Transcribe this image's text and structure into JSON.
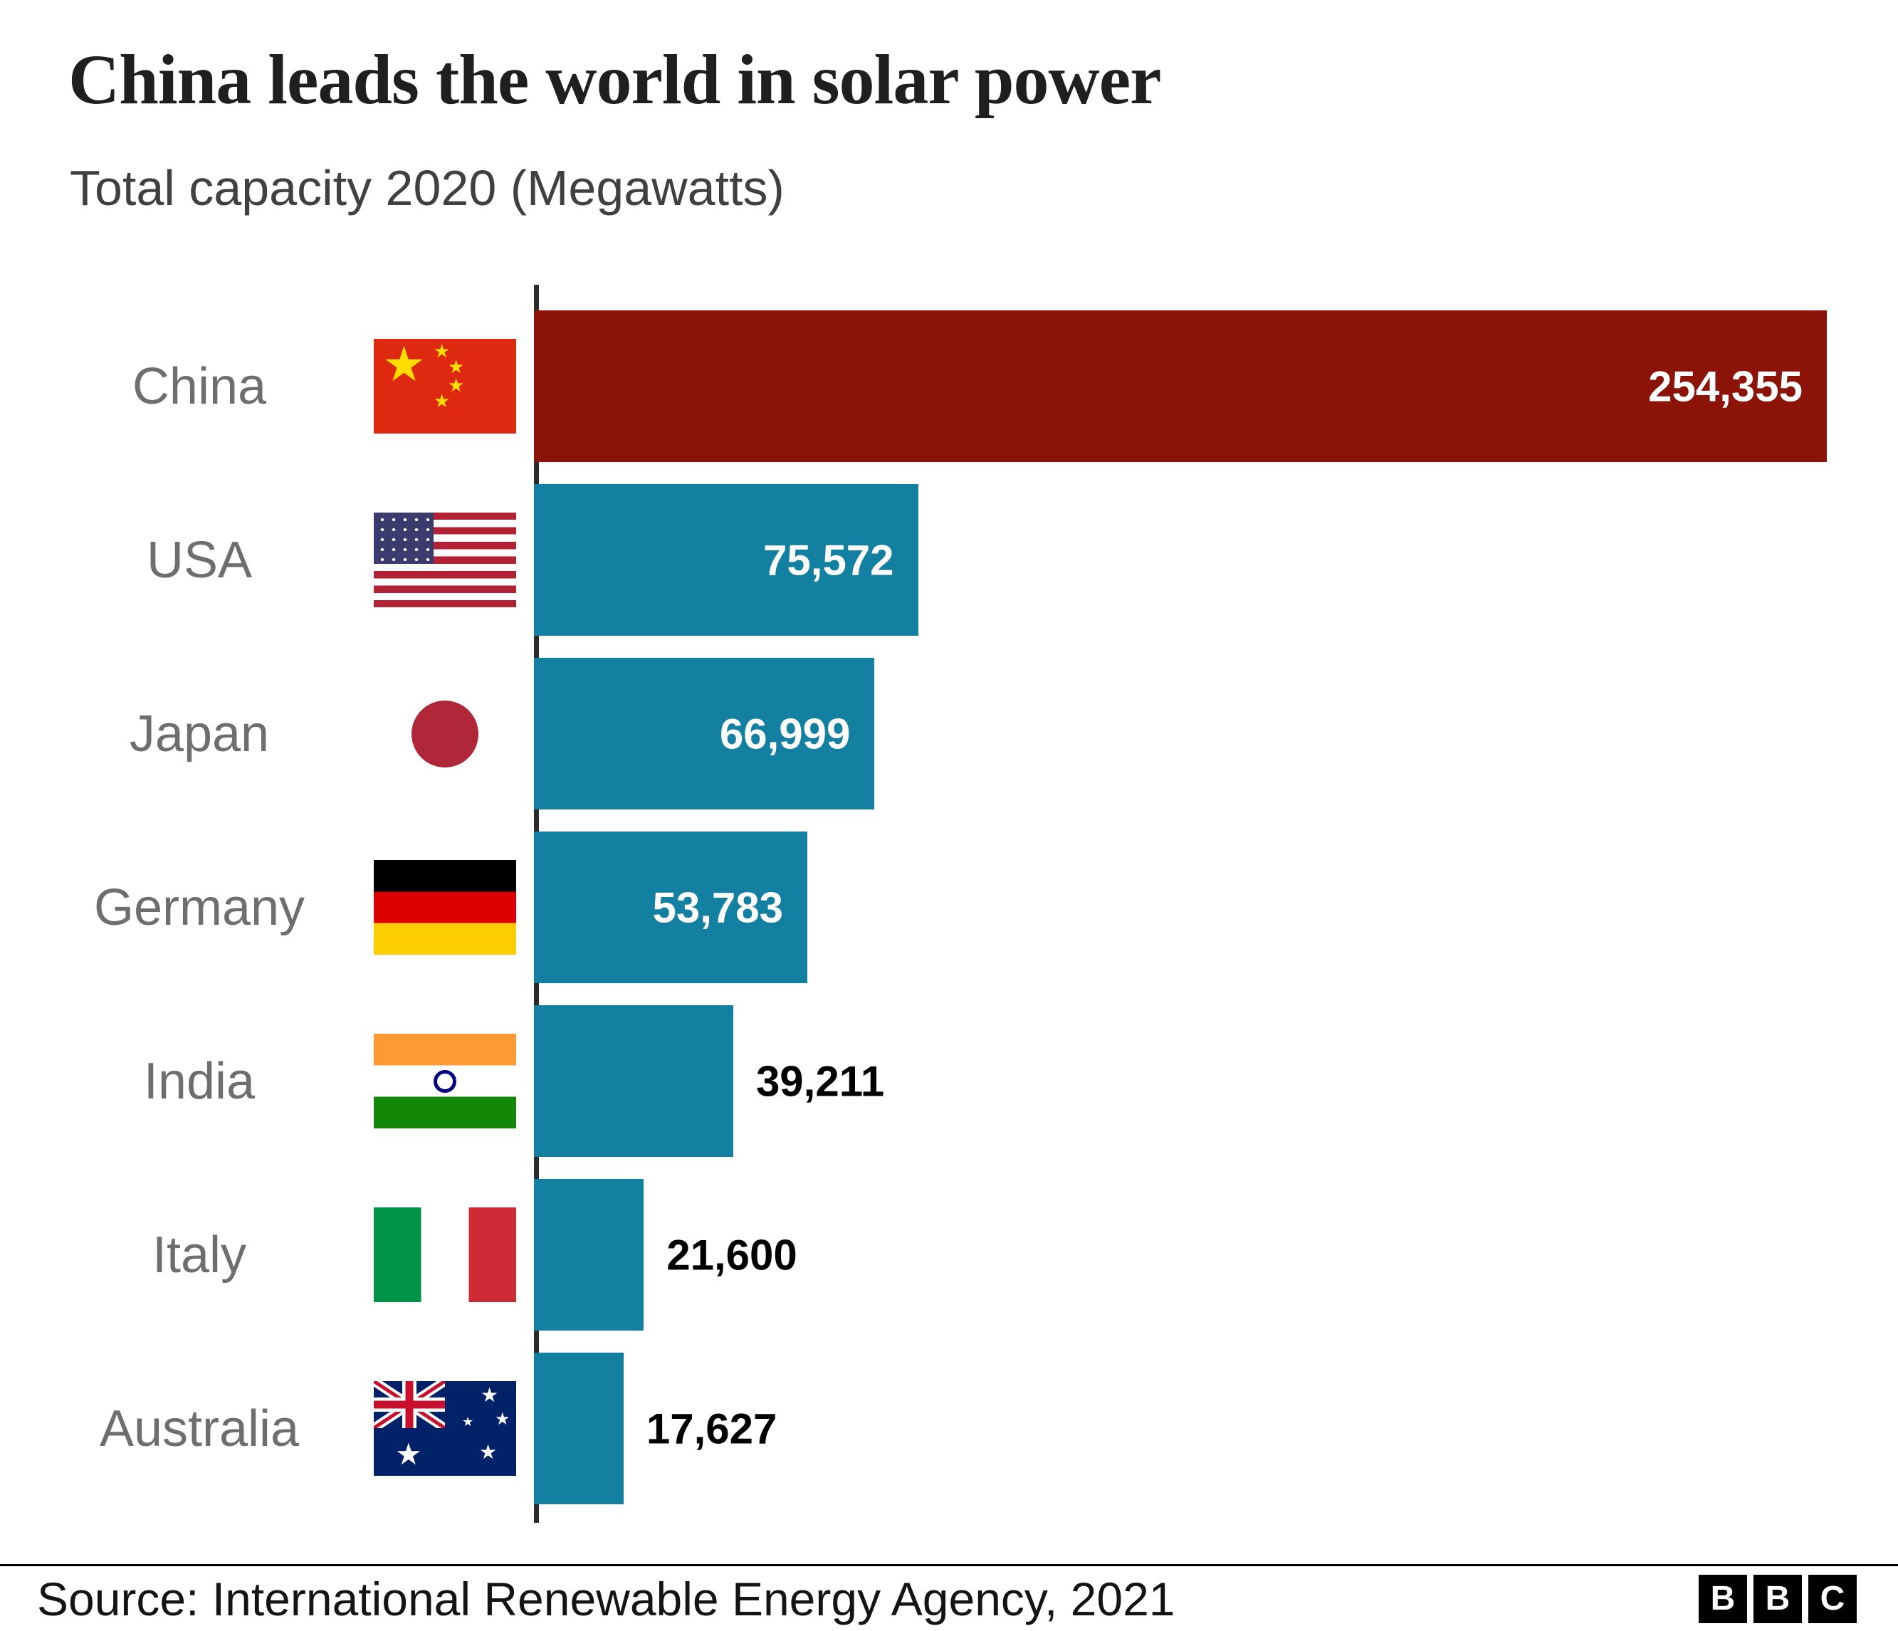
{
  "chart_data": {
    "type": "bar",
    "orientation": "horizontal",
    "title": "China leads the world in solar power",
    "subtitle": "Total capacity 2020 (Megawatts)",
    "categories": [
      "China",
      "USA",
      "Japan",
      "Germany",
      "India",
      "Italy",
      "Australia"
    ],
    "values": [
      254355,
      75572,
      66999,
      53783,
      39211,
      21600,
      17627
    ],
    "value_labels": [
      "254,355",
      "75,572",
      "66,999",
      "53,783",
      "39,211",
      "21,600",
      "17,627"
    ],
    "xlim": [
      0,
      254355
    ],
    "grid": "off",
    "legend": "none",
    "bar_color": "#1380a1",
    "highlight_color": "#8b1308",
    "highlight_index": 0,
    "axis_color": "#2b2b2b",
    "label_color": "#6e6e71",
    "flags": [
      "flag-china",
      "flag-usa",
      "flag-japan",
      "flag-germany",
      "flag-india",
      "flag-italy",
      "flag-australia"
    ]
  },
  "footer": {
    "source": "Source: International Renewable Energy Agency, 2021",
    "logo_letters": [
      "B",
      "B",
      "C"
    ]
  }
}
